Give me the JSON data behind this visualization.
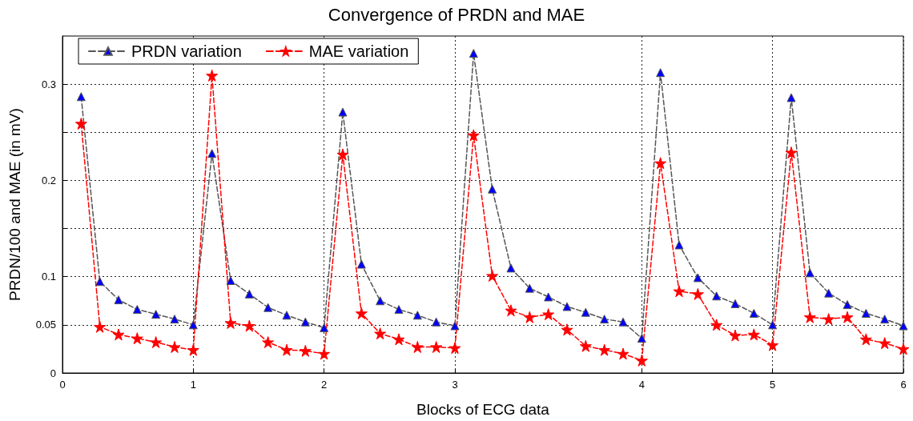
{
  "chart_data": {
    "type": "line",
    "title": "Convergence of PRDN and MAE",
    "xlabel": "Blocks of ECG data",
    "ylabel": "PRDN/100 and MAE (in mV)",
    "categories": [
      "0",
      null,
      null,
      null,
      null,
      null,
      null,
      "1",
      null,
      null,
      null,
      null,
      null,
      null,
      "2",
      null,
      null,
      null,
      null,
      null,
      null,
      "3",
      null,
      null,
      null,
      null,
      null,
      null,
      null,
      null,
      null,
      "4",
      null,
      null,
      null,
      null,
      null,
      null,
      "5",
      null,
      null,
      null,
      null,
      null,
      null,
      "6"
    ],
    "series": [
      {
        "name": "PRDN variation",
        "color": "#0000ff",
        "marker": "triangle",
        "values": [
          null,
          0.287,
          0.095,
          0.076,
          0.066,
          0.061,
          0.056,
          0.05,
          0.228,
          0.096,
          0.082,
          0.068,
          0.06,
          0.053,
          0.047,
          0.271,
          0.113,
          0.075,
          0.066,
          0.06,
          0.053,
          0.049,
          0.332,
          0.191,
          0.109,
          0.088,
          0.079,
          0.069,
          0.063,
          0.056,
          0.053,
          0.036,
          0.312,
          0.133,
          0.099,
          0.08,
          0.072,
          0.062,
          0.05,
          0.286,
          0.104,
          0.083,
          0.071,
          0.062,
          0.056,
          0.049
        ]
      },
      {
        "name": "MAE variation",
        "color": "#ff0000",
        "marker": "star",
        "values": [
          null,
          0.259,
          0.048,
          0.04,
          0.036,
          0.032,
          0.027,
          0.024,
          0.309,
          0.052,
          0.049,
          0.032,
          0.024,
          0.023,
          0.02,
          0.227,
          0.062,
          0.041,
          0.035,
          0.027,
          0.027,
          0.026,
          0.247,
          0.101,
          0.065,
          0.058,
          0.061,
          0.045,
          0.028,
          0.024,
          0.02,
          0.013,
          0.218,
          0.085,
          0.082,
          0.05,
          0.039,
          0.04,
          0.029,
          0.229,
          0.058,
          0.056,
          0.058,
          0.035,
          0.031,
          0.025
        ]
      }
    ],
    "ylim": [
      0,
      0.35
    ],
    "yticks": [
      0,
      0.05,
      0.1,
      {
        "value": 0.15,
        "label": null
      },
      0.2,
      {
        "value": 0.25,
        "label": null
      },
      0.3
    ],
    "grid": true,
    "legend": "top left",
    "line_style": "dashed"
  }
}
